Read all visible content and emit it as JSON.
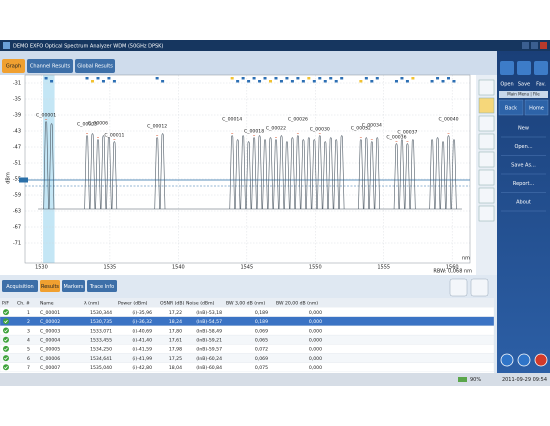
{
  "title_bar": "DEMO EXFO Optical Spectrum Analyzer WDM (50GHz DPSK)",
  "tabs": [
    "Graph",
    "Channel Results",
    "Global Results"
  ],
  "chart_data": {
    "type": "spectrum",
    "y_label": "dBm",
    "x_unit": "nm",
    "rbw": "RBW: 0,068 nm",
    "xlim": [
      1528.8,
      1561.3
    ],
    "ylim": [
      -29,
      -76
    ],
    "xticks": [
      1530,
      1535,
      1540,
      1545,
      1550,
      1555,
      1560
    ],
    "yticks": [
      -31,
      -35,
      -39,
      -43,
      -47,
      -51,
      -55,
      -59,
      -63,
      -67,
      -71
    ],
    "grid": true,
    "color": "#4d5964",
    "floor": -62.5,
    "thresholds": [
      -55.25,
      -56.75
    ],
    "threshold_color": "#2a6fa8",
    "peaks": {
      "x": [
        1530.34,
        1530.74,
        1533.33,
        1533.73,
        1534.13,
        1534.53,
        1534.93,
        1535.33,
        1538.45,
        1538.85,
        1543.93,
        1544.33,
        1544.73,
        1545.13,
        1545.53,
        1545.93,
        1546.33,
        1546.73,
        1547.13,
        1547.53,
        1547.93,
        1548.33,
        1548.73,
        1549.13,
        1549.53,
        1549.93,
        1550.33,
        1550.73,
        1551.13,
        1551.53,
        1551.93,
        1553.33,
        1553.73,
        1554.13,
        1554.53,
        1555.93,
        1556.33,
        1556.73,
        1557.13,
        1558.53,
        1558.93,
        1559.33,
        1559.73,
        1560.13
      ],
      "values": [
        -40.5,
        -41,
        -44,
        -43.5,
        -45,
        -44,
        -44.5,
        -45.5,
        -44.5,
        -43.5,
        -44,
        -45,
        -44,
        -45.5,
        -44.5,
        -44,
        -45,
        -44.5,
        -45,
        -44,
        -45.5,
        -44.5,
        -44,
        -45,
        -44.5,
        -45,
        -44,
        -45.5,
        -44.5,
        -45,
        -44,
        -45,
        -44.5,
        -45.5,
        -44.5,
        -46,
        -45,
        -46,
        -45,
        -45,
        -44.5,
        -45.5,
        -44,
        -45
      ],
      "labels": [
        "C_00001",
        null,
        "C_00003",
        null,
        "C_00006",
        null,
        null,
        "C_00011",
        "C_00012",
        null,
        "C_00014",
        null,
        null,
        null,
        "C_00018",
        null,
        null,
        null,
        "C_00022",
        null,
        null,
        null,
        "C_00026",
        null,
        null,
        null,
        "C_00030",
        null,
        null,
        null,
        null,
        "C_00032",
        null,
        "C_00034",
        null,
        "C_00036",
        null,
        "C_00037",
        null,
        null,
        null,
        null,
        "C_00040",
        null
      ]
    }
  },
  "toolbar": [
    "Open",
    "Save",
    "Fav."
  ],
  "menu_tab": "Main Menu | File",
  "nav": [
    "Back",
    "Home"
  ],
  "menu": [
    "New",
    "Open...",
    "Save As...",
    "Report...",
    "About"
  ],
  "bottom_tabs": [
    "Acquisition",
    "Results",
    "Markers",
    "Trace Info"
  ],
  "table": {
    "headers": [
      "P/F",
      "Ch. #",
      "Name",
      "λ (nm)",
      "Power (dBm)",
      "OSNR (dB)",
      "Noise (dBm)",
      "BW 3,00 dB (nm)",
      "BW 20,00 dB (nm)"
    ],
    "selected_row": 1,
    "rows": [
      [
        "1",
        "C_00001",
        "1530,344",
        "(i)-35,96",
        "17,22",
        "(InB)-53,18",
        "0,189",
        "0,000"
      ],
      [
        "2",
        "C_00002",
        "1530,735",
        "(i)-36,32",
        "18,24",
        "(InB)-54,57",
        "0,189",
        "0,000"
      ],
      [
        "3",
        "C_00003",
        "1533,071",
        "(i)-40,69",
        "17,80",
        "(InB)-58,49",
        "0,069",
        "0,000"
      ],
      [
        "4",
        "C_00004",
        "1533,455",
        "(i)-41,40",
        "17,61",
        "(InB)-59,21",
        "0,065",
        "0,000"
      ],
      [
        "5",
        "C_00005",
        "1534,250",
        "(i)-41,59",
        "17,98",
        "(InB)-59,57",
        "0,072",
        "0,000"
      ],
      [
        "6",
        "C_00006",
        "1534,641",
        "(i)-41,99",
        "17,25",
        "(InB)-60,24",
        "0,069",
        "0,000"
      ],
      [
        "7",
        "C_00007",
        "1535,040",
        "(i)-42,80",
        "18,04",
        "(InB)-60,84",
        "0,075",
        "0,000"
      ]
    ]
  },
  "status": {
    "battery": "90%",
    "datetime": "2011-09-29 09:54"
  }
}
